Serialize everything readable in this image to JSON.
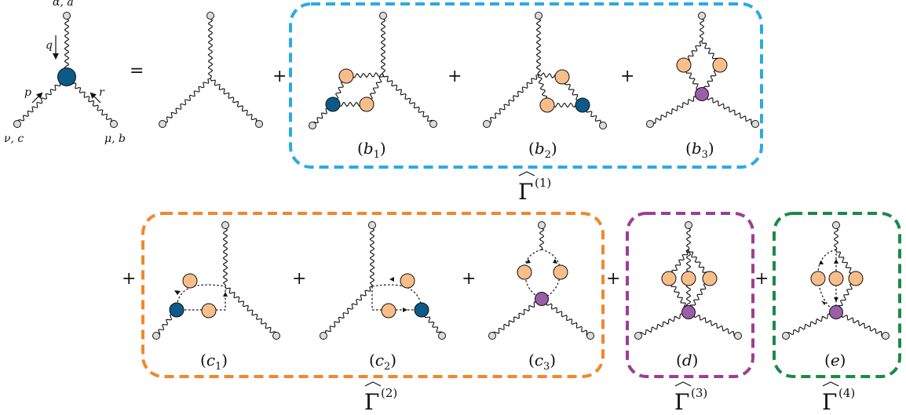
{
  "colors": {
    "box_1": "#29abe2",
    "box_2": "#f0882c",
    "box_3": "#9b3f93",
    "box_4": "#1a8a4a",
    "blue_vertex": "#0b5a8a",
    "orange_blob": "#f7be8a",
    "purple_vertex": "#9b5ea8",
    "endpoint": "#dcdcdc"
  },
  "lhs": {
    "top_label": "α, a",
    "bottom_left_label": "ν, c",
    "bottom_right_label": "μ, b",
    "momentum_q": "q",
    "momentum_p": "p",
    "momentum_r": "r"
  },
  "symbols": {
    "equals": "=",
    "plus": "+"
  },
  "captions": {
    "b1": {
      "letter": "b",
      "sub": "1"
    },
    "b2": {
      "letter": "b",
      "sub": "2"
    },
    "b3": {
      "letter": "b",
      "sub": "3"
    },
    "c1": {
      "letter": "c",
      "sub": "1"
    },
    "c2": {
      "letter": "c",
      "sub": "2"
    },
    "c3": {
      "letter": "c",
      "sub": "3"
    },
    "d": {
      "letter": "d"
    },
    "e": {
      "letter": "e"
    }
  },
  "groups": {
    "g1": {
      "symbol": "Γ",
      "superscript": "(1)"
    },
    "g2": {
      "symbol": "Γ",
      "superscript": "(2)"
    },
    "g3": {
      "symbol": "Γ",
      "superscript": "(3)"
    },
    "g4": {
      "symbol": "Γ",
      "superscript": "(4)"
    }
  }
}
